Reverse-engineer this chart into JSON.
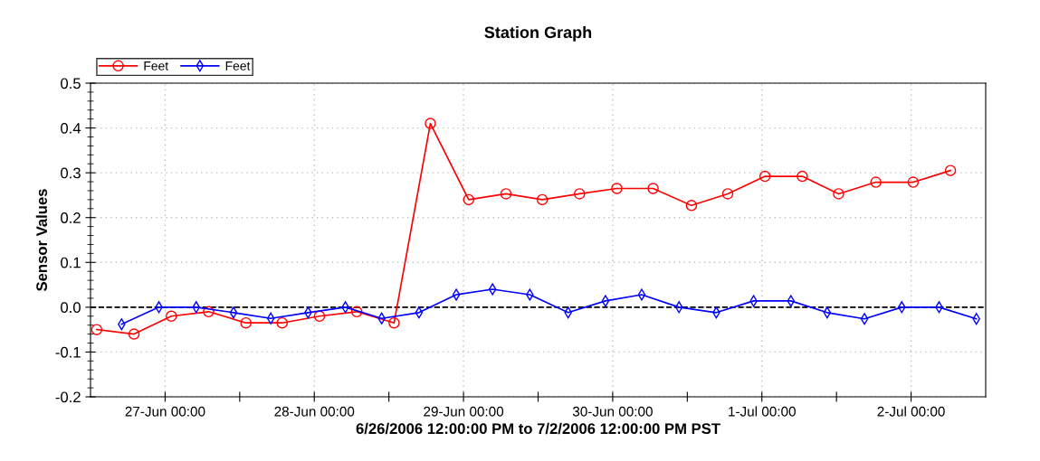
{
  "chart_data": {
    "type": "line",
    "title": "Station Graph",
    "xlabel": "6/26/2006 12:00:00 PM to 7/2/2006 12:00:00 PM PST",
    "ylabel": "Sensor Values",
    "series": [
      {
        "name": "Feet",
        "color": "#ff0000",
        "marker": "circle",
        "x": [
          "2006-06-26T13:00",
          "2006-06-26T19:00",
          "2006-06-27T01:00",
          "2006-06-27T07:00",
          "2006-06-27T13:00",
          "2006-06-27T18:50",
          "2006-06-28T00:50",
          "2006-06-28T06:50",
          "2006-06-28T12:50",
          "2006-06-28T18:40",
          "2006-06-29T00:50",
          "2006-06-29T06:50",
          "2006-06-29T12:40",
          "2006-06-29T18:40",
          "2006-06-30T00:40",
          "2006-06-30T06:30",
          "2006-06-30T12:40",
          "2006-06-30T18:30",
          "2006-07-01T00:30",
          "2006-07-01T06:30",
          "2006-07-01T12:20",
          "2006-07-01T18:20",
          "2006-07-02T00:20",
          "2006-07-02T06:20"
        ],
        "values": [
          -0.05,
          -0.06,
          -0.02,
          -0.01,
          -0.035,
          -0.035,
          -0.02,
          -0.01,
          -0.035,
          0.41,
          0.24,
          0.253,
          0.24,
          0.253,
          0.265,
          0.265,
          0.227,
          0.253,
          0.292,
          0.292,
          0.253,
          0.279,
          0.279,
          0.305
        ]
      },
      {
        "name": "Feet",
        "color": "#0000ff",
        "marker": "diamond",
        "x": [
          "2006-06-26T17:00",
          "2006-06-26T23:00",
          "2006-06-27T05:00",
          "2006-06-27T11:00",
          "2006-06-27T17:00",
          "2006-06-27T23:00",
          "2006-06-28T05:00",
          "2006-06-28T10:50",
          "2006-06-28T16:50",
          "2006-06-28T22:50",
          "2006-06-29T04:40",
          "2006-06-29T10:40",
          "2006-06-29T16:50",
          "2006-06-29T22:50",
          "2006-06-30T04:40",
          "2006-06-30T10:40",
          "2006-06-30T16:40",
          "2006-06-30T22:40",
          "2006-07-01T04:40",
          "2006-07-01T10:30",
          "2006-07-01T16:30",
          "2006-07-01T22:30",
          "2006-07-02T04:30",
          "2006-07-02T10:30"
        ],
        "values": [
          -0.038,
          0.0,
          0.0,
          -0.012,
          -0.025,
          -0.012,
          0.0,
          -0.025,
          -0.012,
          0.028,
          0.04,
          0.028,
          -0.012,
          0.014,
          0.028,
          0.0,
          -0.012,
          0.014,
          0.014,
          -0.012,
          -0.026,
          0.0,
          0.0,
          -0.026
        ]
      }
    ],
    "xlim": [
      "2006-06-26T12:00",
      "2006-07-02T12:00"
    ],
    "xticks": [
      {
        "value": "2006-06-27T00:00",
        "label": "27-Jun 00:00"
      },
      {
        "value": "2006-06-27T12:00",
        "label": null
      },
      {
        "value": "2006-06-28T00:00",
        "label": "28-Jun 00:00"
      },
      {
        "value": "2006-06-28T12:00",
        "label": null
      },
      {
        "value": "2006-06-29T00:00",
        "label": "29-Jun 00:00"
      },
      {
        "value": "2006-06-29T12:00",
        "label": null
      },
      {
        "value": "2006-06-30T00:00",
        "label": "30-Jun 00:00"
      },
      {
        "value": "2006-06-30T12:00",
        "label": null
      },
      {
        "value": "2006-07-01T00:00",
        "label": "1-Jul 00:00"
      },
      {
        "value": "2006-07-01T12:00",
        "label": null
      },
      {
        "value": "2006-07-02T00:00",
        "label": "2-Jul 00:00"
      }
    ],
    "ylim": [
      -0.2,
      0.5
    ],
    "yticks": [
      {
        "value": -0.2,
        "label": "-0.2"
      },
      {
        "value": -0.1,
        "label": "-0.1"
      },
      {
        "value": 0,
        "label": "0.0"
      },
      0.1,
      0.2,
      0.3,
      0.4,
      0.5
    ],
    "ref_lines": [
      {
        "axis": "y",
        "value": 0,
        "color": "#000000",
        "line_style": "dashed"
      }
    ],
    "grid": true,
    "legend": "top left",
    "line_style": "solid"
  }
}
